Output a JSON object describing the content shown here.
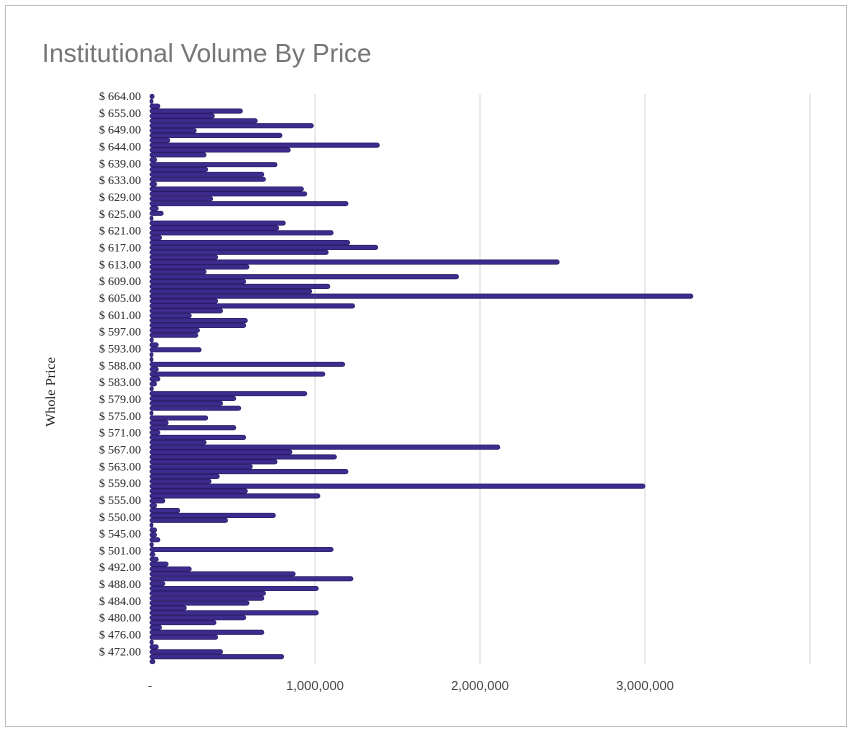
{
  "chart_data": {
    "type": "bar",
    "orientation": "horizontal",
    "title": "Institutional Volume By Price",
    "ylabel": "Whole Price",
    "xlim": [
      0,
      4000000
    ],
    "x_ticks": [
      {
        "value": 0,
        "label": "-"
      },
      {
        "value": 1000000,
        "label": "1,000,000"
      },
      {
        "value": 2000000,
        "label": "2,000,000"
      },
      {
        "value": 3000000,
        "label": "3,000,000"
      }
    ],
    "grid": true,
    "bar_color": "#3d2b8e",
    "bar_edge_color": "#2a1c66",
    "tick_labels": [
      "$ 664.00",
      "$ 655.00",
      "$ 649.00",
      "$ 644.00",
      "$ 639.00",
      "$ 633.00",
      "$ 629.00",
      "$ 625.00",
      "$ 621.00",
      "$ 617.00",
      "$ 613.00",
      "$ 609.00",
      "$ 605.00",
      "$ 601.00",
      "$ 597.00",
      "$ 593.00",
      "$ 588.00",
      "$ 583.00",
      "$ 579.00",
      "$ 575.00",
      "$ 571.00",
      "$ 567.00",
      "$ 563.00",
      "$ 559.00",
      "$ 555.00",
      "$ 550.00",
      "$ 545.00",
      "$ 501.00",
      "$ 492.00",
      "$ 488.00",
      "$ 484.00",
      "$ 480.00",
      "$ 476.00",
      "$ 472.00"
    ],
    "values": [
      25000,
      10000,
      60000,
      560000,
      390000,
      650000,
      990000,
      280000,
      800000,
      120000,
      1390000,
      850000,
      340000,
      40000,
      770000,
      350000,
      690000,
      700000,
      40000,
      930000,
      950000,
      380000,
      1200000,
      50000,
      80000,
      10000,
      820000,
      780000,
      1110000,
      70000,
      1210000,
      1380000,
      1080000,
      410000,
      2480000,
      600000,
      340000,
      1870000,
      580000,
      1090000,
      980000,
      3290000,
      410000,
      1240000,
      440000,
      250000,
      590000,
      580000,
      300000,
      290000,
      20000,
      50000,
      310000,
      10000,
      5000,
      1180000,
      50000,
      1060000,
      60000,
      40000,
      20000,
      950000,
      520000,
      440000,
      550000,
      10000,
      350000,
      110000,
      520000,
      60000,
      580000,
      340000,
      2120000,
      860000,
      1130000,
      770000,
      620000,
      1200000,
      420000,
      370000,
      3000000,
      590000,
      1030000,
      90000,
      40000,
      180000,
      760000,
      470000,
      10000,
      40000,
      40000,
      60000,
      20000,
      1110000,
      30000,
      50000,
      110000,
      250000,
      880000,
      1230000,
      90000,
      1020000,
      700000,
      690000,
      600000,
      220000,
      1020000,
      580000,
      400000,
      70000,
      690000,
      410000,
      20000,
      50000,
      440000,
      810000,
      30000
    ]
  }
}
